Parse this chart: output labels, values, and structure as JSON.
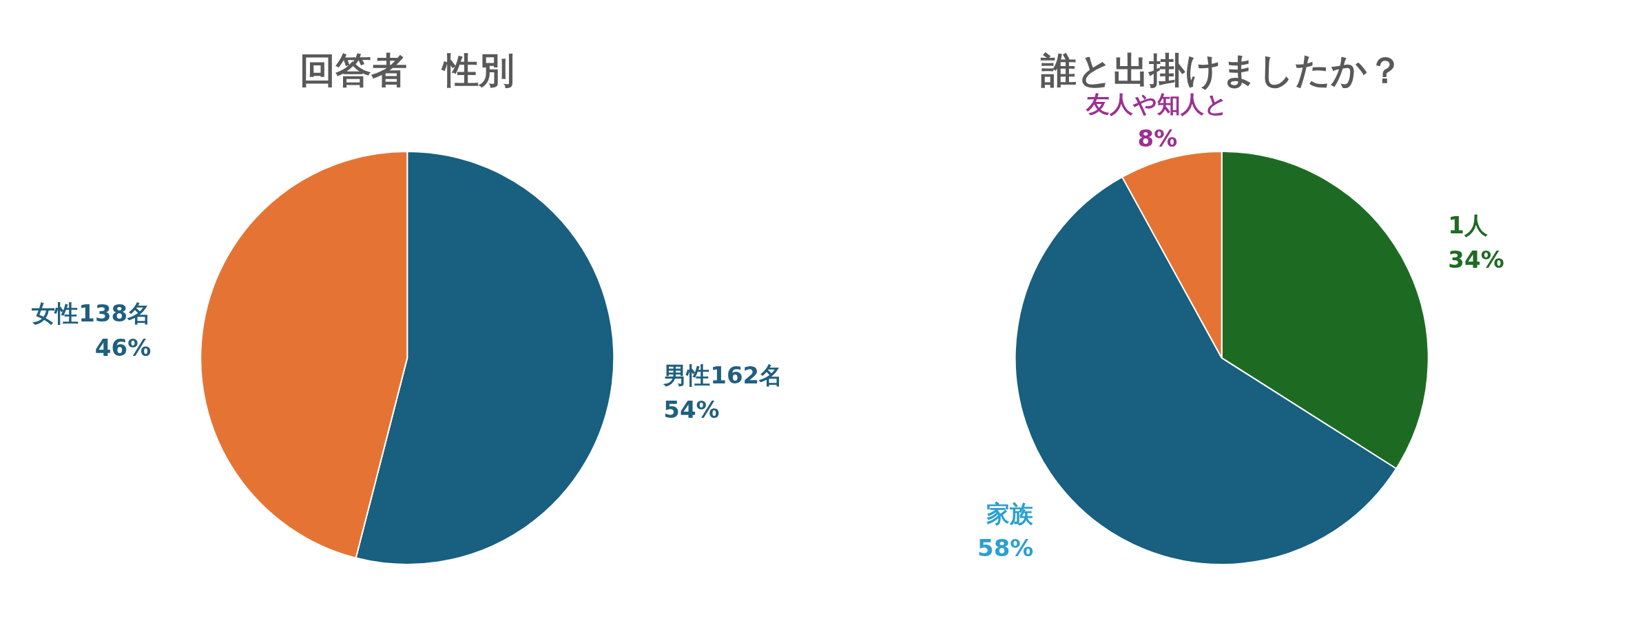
{
  "chart_data": [
    {
      "type": "pie",
      "title": "回答者　性別",
      "categories": [
        "男性162名",
        "女性138名"
      ],
      "values": [
        54,
        46
      ],
      "value_labels": [
        "54%",
        "46%"
      ],
      "colors": [
        "#185f80",
        "#e57434"
      ]
    },
    {
      "type": "pie",
      "title": "誰と出掛けましたか？",
      "categories": [
        "1人",
        "家族",
        "友人や知人と"
      ],
      "values": [
        34,
        58,
        8
      ],
      "value_labels": [
        "34%",
        "58%",
        "8%"
      ],
      "colors": [
        "#1d6b23",
        "#185f80",
        "#e57434"
      ]
    }
  ]
}
